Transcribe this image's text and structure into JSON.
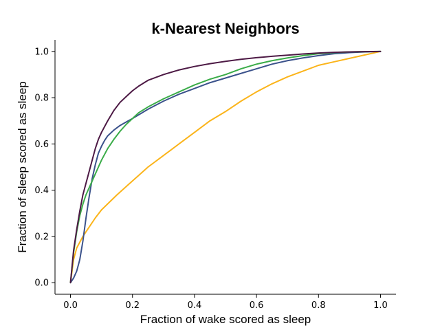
{
  "chart_data": {
    "type": "line",
    "title": "k-Nearest Neighbors",
    "xlabel": "Fraction of wake scored as sleep",
    "ylabel": "Fraction of sleep scored as sleep",
    "xlim": [
      -0.05,
      1.05
    ],
    "ylim": [
      -0.05,
      1.05
    ],
    "xticks": [
      0.0,
      0.2,
      0.4,
      0.6,
      0.8,
      1.0
    ],
    "xtick_labels": [
      "0.0",
      "0.2",
      "0.4",
      "0.6",
      "0.8",
      "1.0"
    ],
    "yticks": [
      0.0,
      0.2,
      0.4,
      0.6,
      0.8,
      1.0
    ],
    "ytick_labels": [
      "0.0",
      "0.2",
      "0.4",
      "0.6",
      "0.8",
      "1.0"
    ],
    "grid": false,
    "legend": "none",
    "series": [
      {
        "color": "#fbb41a",
        "x": [
          0.0,
          0.01,
          0.02,
          0.04,
          0.06,
          0.08,
          0.1,
          0.15,
          0.2,
          0.25,
          0.3,
          0.35,
          0.4,
          0.45,
          0.5,
          0.55,
          0.6,
          0.65,
          0.7,
          0.75,
          0.8,
          0.85,
          0.9,
          0.95,
          1.0
        ],
        "y": [
          0.0,
          0.1,
          0.15,
          0.2,
          0.24,
          0.28,
          0.315,
          0.38,
          0.44,
          0.5,
          0.55,
          0.6,
          0.65,
          0.7,
          0.74,
          0.785,
          0.825,
          0.86,
          0.89,
          0.915,
          0.94,
          0.955,
          0.97,
          0.985,
          1.0
        ]
      },
      {
        "color": "#3b528b",
        "x": [
          0.0,
          0.01,
          0.02,
          0.03,
          0.04,
          0.05,
          0.06,
          0.07,
          0.08,
          0.09,
          0.1,
          0.11,
          0.12,
          0.14,
          0.16,
          0.18,
          0.2,
          0.25,
          0.3,
          0.35,
          0.4,
          0.45,
          0.5,
          0.55,
          0.6,
          0.65,
          0.7,
          0.75,
          0.8,
          0.85,
          0.9,
          0.95,
          1.0
        ],
        "y": [
          0.0,
          0.02,
          0.05,
          0.1,
          0.18,
          0.28,
          0.37,
          0.45,
          0.51,
          0.56,
          0.59,
          0.615,
          0.635,
          0.66,
          0.68,
          0.695,
          0.71,
          0.75,
          0.785,
          0.815,
          0.84,
          0.865,
          0.885,
          0.905,
          0.925,
          0.945,
          0.96,
          0.972,
          0.982,
          0.99,
          0.995,
          0.998,
          1.0
        ]
      },
      {
        "color": "#3aac48",
        "x": [
          0.0,
          0.01,
          0.02,
          0.03,
          0.04,
          0.05,
          0.06,
          0.07,
          0.08,
          0.09,
          0.1,
          0.12,
          0.14,
          0.16,
          0.18,
          0.2,
          0.22,
          0.25,
          0.3,
          0.35,
          0.4,
          0.45,
          0.5,
          0.55,
          0.6,
          0.65,
          0.7,
          0.75,
          0.8,
          0.85,
          0.9,
          0.95,
          1.0
        ],
        "y": [
          0.0,
          0.13,
          0.22,
          0.29,
          0.34,
          0.38,
          0.41,
          0.44,
          0.47,
          0.5,
          0.53,
          0.58,
          0.62,
          0.655,
          0.685,
          0.71,
          0.735,
          0.76,
          0.795,
          0.825,
          0.855,
          0.88,
          0.9,
          0.925,
          0.945,
          0.96,
          0.972,
          0.982,
          0.99,
          0.995,
          0.998,
          0.999,
          1.0
        ]
      },
      {
        "color": "#4d1a45",
        "x": [
          0.0,
          0.01,
          0.02,
          0.03,
          0.04,
          0.05,
          0.06,
          0.07,
          0.08,
          0.09,
          0.1,
          0.12,
          0.14,
          0.16,
          0.18,
          0.2,
          0.22,
          0.25,
          0.3,
          0.35,
          0.4,
          0.45,
          0.5,
          0.55,
          0.6,
          0.65,
          0.7,
          0.75,
          0.8,
          0.85,
          0.9,
          0.95,
          1.0
        ],
        "y": [
          0.0,
          0.14,
          0.23,
          0.31,
          0.38,
          0.43,
          0.48,
          0.53,
          0.58,
          0.62,
          0.65,
          0.7,
          0.745,
          0.78,
          0.805,
          0.83,
          0.85,
          0.875,
          0.9,
          0.92,
          0.935,
          0.947,
          0.957,
          0.966,
          0.973,
          0.979,
          0.984,
          0.989,
          0.993,
          0.996,
          0.998,
          0.999,
          1.0
        ]
      }
    ]
  }
}
